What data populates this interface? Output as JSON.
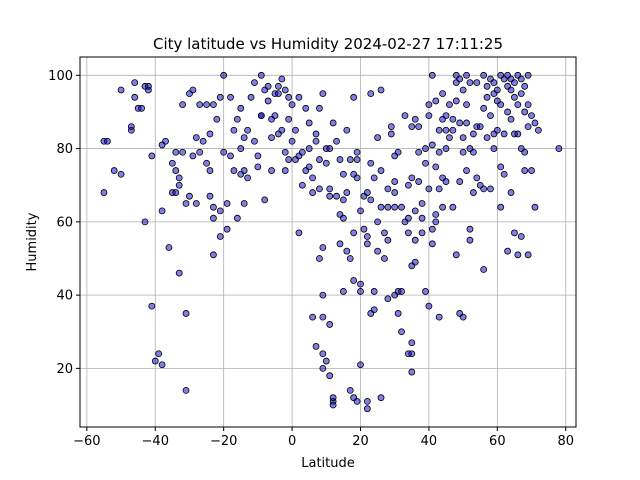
{
  "chart_data": {
    "type": "scatter",
    "title": "City latitude vs Humidity 2024-02-27 17:11:25",
    "xlabel": "Latitude",
    "ylabel": "Humidity",
    "xlim": [
      -62,
      83
    ],
    "ylim": [
      4,
      105
    ],
    "xticks": [
      -60,
      -40,
      -20,
      0,
      20,
      40,
      60,
      80
    ],
    "yticks": [
      20,
      40,
      60,
      80,
      100
    ],
    "grid": true,
    "marker_face": "#0000cc",
    "marker_edge": "#000000",
    "points": [
      [
        -55,
        82
      ],
      [
        -54,
        82
      ],
      [
        -55,
        68
      ],
      [
        -52,
        74
      ],
      [
        -50,
        73
      ],
      [
        -50,
        96
      ],
      [
        -47,
        85
      ],
      [
        -47,
        86
      ],
      [
        -46,
        94
      ],
      [
        -46,
        98
      ],
      [
        -45,
        91
      ],
      [
        -44,
        91
      ],
      [
        -43,
        97
      ],
      [
        -42,
        96
      ],
      [
        -42,
        97
      ],
      [
        -43,
        60
      ],
      [
        -41,
        78
      ],
      [
        -41,
        37
      ],
      [
        -40,
        22
      ],
      [
        -39,
        24
      ],
      [
        -38,
        21
      ],
      [
        -38,
        81
      ],
      [
        -37,
        82
      ],
      [
        -38,
        63
      ],
      [
        -36,
        53
      ],
      [
        -35,
        68
      ],
      [
        -35,
        76
      ],
      [
        -34,
        74
      ],
      [
        -34,
        68
      ],
      [
        -34,
        79
      ],
      [
        -33,
        72
      ],
      [
        -33,
        70
      ],
      [
        -32,
        79
      ],
      [
        -33,
        46
      ],
      [
        -32,
        92
      ],
      [
        -31,
        14
      ],
      [
        -31,
        35
      ],
      [
        -31,
        65
      ],
      [
        -30,
        95
      ],
      [
        -30,
        67
      ],
      [
        -29,
        96
      ],
      [
        -29,
        78
      ],
      [
        -28,
        83
      ],
      [
        -28,
        65
      ],
      [
        -27,
        92
      ],
      [
        -27,
        79
      ],
      [
        -26,
        82
      ],
      [
        -25,
        76
      ],
      [
        -25,
        92
      ],
      [
        -24,
        84
      ],
      [
        -23,
        92
      ],
      [
        -24,
        67
      ],
      [
        -24,
        74
      ],
      [
        -23,
        64
      ],
      [
        -23,
        61
      ],
      [
        -23,
        51
      ],
      [
        -22,
        88
      ],
      [
        -21,
        94
      ],
      [
        -21,
        63
      ],
      [
        -21,
        56
      ],
      [
        -20,
        79
      ],
      [
        -20,
        100
      ],
      [
        -19,
        65
      ],
      [
        -19,
        58
      ],
      [
        -18,
        94
      ],
      [
        -18,
        78
      ],
      [
        -17,
        74
      ],
      [
        -17,
        85
      ],
      [
        -16,
        88
      ],
      [
        -15,
        91
      ],
      [
        -15,
        73
      ],
      [
        -15,
        80
      ],
      [
        -16,
        61
      ],
      [
        -14,
        74
      ],
      [
        -14,
        83
      ],
      [
        -14,
        65
      ],
      [
        -13,
        72
      ],
      [
        -13,
        85
      ],
      [
        -12,
        94
      ],
      [
        -11,
        98
      ],
      [
        -11,
        82
      ],
      [
        -10,
        75
      ],
      [
        -10,
        78
      ],
      [
        -9,
        89
      ],
      [
        -9,
        100
      ],
      [
        -9,
        89
      ],
      [
        -8,
        96
      ],
      [
        -8,
        66
      ],
      [
        -7,
        97
      ],
      [
        -7,
        93
      ],
      [
        -6,
        83
      ],
      [
        -6,
        88
      ],
      [
        -6,
        74
      ],
      [
        -5,
        95
      ],
      [
        -5,
        89
      ],
      [
        -4,
        97
      ],
      [
        -4,
        84
      ],
      [
        -4,
        95
      ],
      [
        -3,
        99
      ],
      [
        -3,
        85
      ],
      [
        -2,
        96
      ],
      [
        -2,
        79
      ],
      [
        -2,
        74
      ],
      [
        -1,
        94
      ],
      [
        -1,
        88
      ],
      [
        -1,
        77
      ],
      [
        0,
        92
      ],
      [
        0,
        82
      ],
      [
        1,
        85
      ],
      [
        1,
        77
      ],
      [
        2,
        78
      ],
      [
        2,
        57
      ],
      [
        2,
        94
      ],
      [
        3,
        70
      ],
      [
        3,
        79
      ],
      [
        4,
        91
      ],
      [
        4,
        74
      ],
      [
        5,
        87
      ],
      [
        5,
        80
      ],
      [
        5,
        75
      ],
      [
        6,
        72
      ],
      [
        6,
        34
      ],
      [
        6,
        68
      ],
      [
        7,
        26
      ],
      [
        7,
        82
      ],
      [
        7,
        84
      ],
      [
        8,
        77
      ],
      [
        8,
        91
      ],
      [
        8,
        50
      ],
      [
        8,
        69
      ],
      [
        9,
        95
      ],
      [
        9,
        40
      ],
      [
        9,
        53
      ],
      [
        9,
        34
      ],
      [
        9,
        24
      ],
      [
        9,
        20
      ],
      [
        10,
        22
      ],
      [
        10,
        80
      ],
      [
        10,
        76
      ],
      [
        11,
        18
      ],
      [
        11,
        69
      ],
      [
        11,
        67
      ],
      [
        11,
        32
      ],
      [
        11,
        80
      ],
      [
        12,
        11
      ],
      [
        12,
        10
      ],
      [
        12,
        12
      ],
      [
        12,
        87
      ],
      [
        13,
        67
      ],
      [
        13,
        82
      ],
      [
        14,
        54
      ],
      [
        14,
        62
      ],
      [
        14,
        77
      ],
      [
        15,
        73
      ],
      [
        15,
        61
      ],
      [
        15,
        41
      ],
      [
        15,
        66
      ],
      [
        16,
        52
      ],
      [
        16,
        85
      ],
      [
        16,
        68
      ],
      [
        17,
        77
      ],
      [
        17,
        14
      ],
      [
        17,
        50
      ],
      [
        18,
        12
      ],
      [
        18,
        73
      ],
      [
        18,
        94
      ],
      [
        18,
        57
      ],
      [
        18,
        44
      ],
      [
        19,
        11
      ],
      [
        19,
        77
      ],
      [
        19,
        79
      ],
      [
        19,
        72
      ],
      [
        20,
        21
      ],
      [
        20,
        63
      ],
      [
        20,
        43
      ],
      [
        20,
        41
      ],
      [
        21,
        67
      ],
      [
        21,
        58
      ],
      [
        22,
        11
      ],
      [
        22,
        56
      ],
      [
        22,
        54
      ],
      [
        22,
        9
      ],
      [
        22,
        68
      ],
      [
        23,
        76
      ],
      [
        23,
        95
      ],
      [
        23,
        66
      ],
      [
        23,
        35
      ],
      [
        24,
        36
      ],
      [
        24,
        72
      ],
      [
        24,
        41
      ],
      [
        25,
        83
      ],
      [
        25,
        60
      ],
      [
        25,
        52
      ],
      [
        26,
        12
      ],
      [
        26,
        96
      ],
      [
        26,
        74
      ],
      [
        26,
        64
      ],
      [
        27,
        57
      ],
      [
        27,
        50
      ],
      [
        28,
        55
      ],
      [
        28,
        39
      ],
      [
        28,
        64
      ],
      [
        28,
        69
      ],
      [
        29,
        84
      ],
      [
        29,
        86
      ],
      [
        30,
        68
      ],
      [
        30,
        64
      ],
      [
        30,
        78
      ],
      [
        30,
        71
      ],
      [
        30,
        40
      ],
      [
        31,
        41
      ],
      [
        31,
        35
      ],
      [
        31,
        79
      ],
      [
        32,
        30
      ],
      [
        32,
        64
      ],
      [
        32,
        41
      ],
      [
        33,
        60
      ],
      [
        33,
        89
      ],
      [
        34,
        61
      ],
      [
        34,
        24
      ],
      [
        34,
        70
      ],
      [
        34,
        57
      ],
      [
        35,
        24
      ],
      [
        35,
        86
      ],
      [
        35,
        72
      ],
      [
        35,
        48
      ],
      [
        35,
        27
      ],
      [
        35,
        19
      ],
      [
        36,
        49
      ],
      [
        36,
        63
      ],
      [
        36,
        55
      ],
      [
        36,
        88
      ],
      [
        37,
        71
      ],
      [
        37,
        86
      ],
      [
        37,
        79
      ],
      [
        38,
        57
      ],
      [
        38,
        65
      ],
      [
        38,
        61
      ],
      [
        39,
        80
      ],
      [
        39,
        41
      ],
      [
        39,
        76
      ],
      [
        40,
        89
      ],
      [
        40,
        92
      ],
      [
        40,
        69
      ],
      [
        40,
        37
      ],
      [
        41,
        100
      ],
      [
        41,
        58
      ],
      [
        41,
        54
      ],
      [
        41,
        81
      ],
      [
        42,
        75
      ],
      [
        42,
        60
      ],
      [
        42,
        93
      ],
      [
        42,
        62
      ],
      [
        43,
        69
      ],
      [
        43,
        85
      ],
      [
        43,
        79
      ],
      [
        43,
        34
      ],
      [
        44,
        95
      ],
      [
        44,
        88
      ],
      [
        44,
        72
      ],
      [
        44,
        64
      ],
      [
        45,
        85
      ],
      [
        45,
        80
      ],
      [
        45,
        89
      ],
      [
        45,
        71
      ],
      [
        46,
        92
      ],
      [
        46,
        83
      ],
      [
        47,
        88
      ],
      [
        47,
        64
      ],
      [
        47,
        85
      ],
      [
        48,
        100
      ],
      [
        48,
        98
      ],
      [
        48,
        93
      ],
      [
        48,
        51
      ],
      [
        49,
        99
      ],
      [
        49,
        87
      ],
      [
        49,
        71
      ],
      [
        49,
        35
      ],
      [
        50,
        96
      ],
      [
        50,
        83
      ],
      [
        50,
        79
      ],
      [
        50,
        34
      ],
      [
        51,
        100
      ],
      [
        51,
        87
      ],
      [
        51,
        92
      ],
      [
        51,
        74
      ],
      [
        52,
        98
      ],
      [
        52,
        80
      ],
      [
        52,
        58
      ],
      [
        52,
        55
      ],
      [
        53,
        84
      ],
      [
        53,
        68
      ],
      [
        53,
        79
      ],
      [
        54,
        98
      ],
      [
        54,
        86
      ],
      [
        54,
        72
      ],
      [
        55,
        86
      ],
      [
        55,
        70
      ],
      [
        56,
        100
      ],
      [
        56,
        91
      ],
      [
        56,
        69
      ],
      [
        56,
        47
      ],
      [
        57,
        97
      ],
      [
        57,
        94
      ],
      [
        57,
        83
      ],
      [
        58,
        99
      ],
      [
        58,
        89
      ],
      [
        58,
        69
      ],
      [
        59,
        98
      ],
      [
        59,
        95
      ],
      [
        59,
        84
      ],
      [
        59,
        80
      ],
      [
        60,
        96
      ],
      [
        60,
        93
      ],
      [
        60,
        85
      ],
      [
        61,
        100
      ],
      [
        61,
        92
      ],
      [
        61,
        75
      ],
      [
        61,
        64
      ],
      [
        62,
        99
      ],
      [
        62,
        84
      ],
      [
        62,
        73
      ],
      [
        63,
        100
      ],
      [
        63,
        97
      ],
      [
        63,
        90
      ],
      [
        63,
        52
      ],
      [
        64,
        99
      ],
      [
        64,
        96
      ],
      [
        64,
        88
      ],
      [
        64,
        68
      ],
      [
        65,
        98
      ],
      [
        65,
        94
      ],
      [
        65,
        84
      ],
      [
        65,
        57
      ],
      [
        66,
        100
      ],
      [
        66,
        92
      ],
      [
        66,
        84
      ],
      [
        66,
        51
      ],
      [
        67,
        99
      ],
      [
        67,
        95
      ],
      [
        67,
        80
      ],
      [
        67,
        56
      ],
      [
        68,
        97
      ],
      [
        68,
        90
      ],
      [
        68,
        79
      ],
      [
        68,
        74
      ],
      [
        69,
        100
      ],
      [
        69,
        92
      ],
      [
        69,
        86
      ],
      [
        69,
        51
      ],
      [
        70,
        89
      ],
      [
        70,
        74
      ],
      [
        71,
        87
      ],
      [
        71,
        64
      ],
      [
        72,
        85
      ],
      [
        78,
        80
      ]
    ]
  }
}
